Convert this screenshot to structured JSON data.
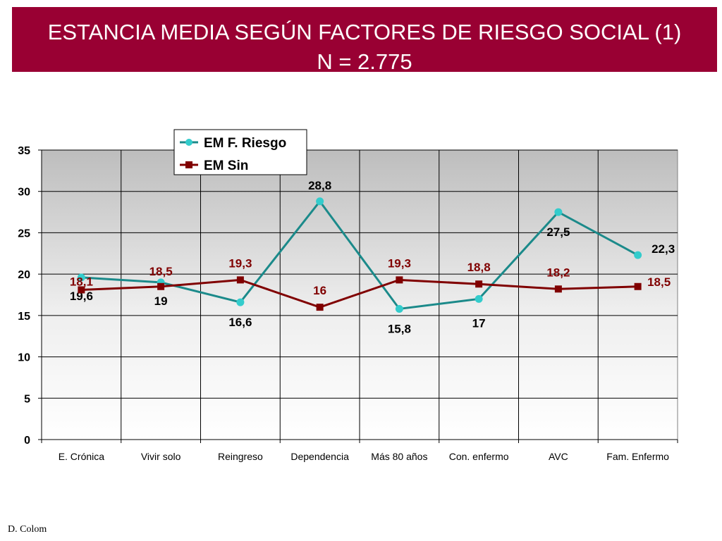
{
  "title": {
    "line1": "ESTANCIA MEDIA SEGÚN FACTORES DE RIESGO SOCIAL (1)",
    "line2": "N = 2.775"
  },
  "footer": {
    "credit": "D. Colom"
  },
  "colors": {
    "banner": "#990033",
    "series_riesgo": "#1B8A8A",
    "series_riesgo_marker": "#33CCCC",
    "series_sin": "#800000"
  },
  "chart_data": {
    "type": "line",
    "categories": [
      "E. Crónica",
      "Vivir solo",
      "Reingreso",
      "Dependencia",
      "Más 80 años",
      "Con. enfermo",
      "AVC",
      "Fam. Enfermo"
    ],
    "series": [
      {
        "name": "EM F. Riesgo",
        "values": [
          19.6,
          19,
          16.6,
          28.8,
          15.8,
          17,
          27.5,
          22.3
        ],
        "labels": [
          "19,6",
          "19",
          "16,6",
          "28,8",
          "15,8",
          "17",
          "27,5",
          "22,3"
        ],
        "marker": "circle"
      },
      {
        "name": "EM Sin",
        "values": [
          18.1,
          18.5,
          19.3,
          16,
          19.3,
          18.8,
          18.2,
          18.5
        ],
        "labels": [
          "18,1",
          "18,5",
          "19,3",
          "16",
          "19,3",
          "18,8",
          "18,2",
          "18,5"
        ],
        "marker": "square"
      }
    ],
    "yticks": [
      "0",
      "5",
      "10",
      "15",
      "20",
      "25",
      "30",
      "35"
    ],
    "ylim": [
      0,
      35
    ],
    "grid": true,
    "legend": "top-center"
  }
}
